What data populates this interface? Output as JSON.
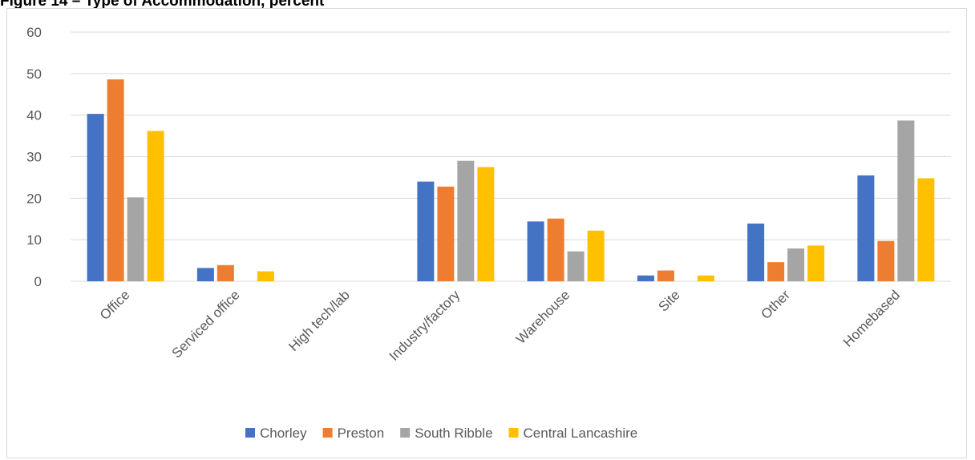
{
  "figure_title": "Figure 14 – Type of Accommodation, percent",
  "chart_data": {
    "type": "bar",
    "title": "",
    "xlabel": "",
    "ylabel": "",
    "ylim": [
      0,
      60
    ],
    "yticks": [
      0,
      10,
      20,
      30,
      40,
      50,
      60
    ],
    "grid": true,
    "legend_position": "bottom",
    "categories": [
      "Office",
      "Serviced office",
      "High tech/lab",
      "Industry/factory",
      "Warehouse",
      "Site",
      "Other",
      "Homebased"
    ],
    "series": [
      {
        "name": "Chorley",
        "color": "#4472C4",
        "values": [
          40.3,
          3.2,
          0,
          24.0,
          14.4,
          1.4,
          13.9,
          25.5
        ]
      },
      {
        "name": "Preston",
        "color": "#ED7D31",
        "values": [
          48.6,
          3.9,
          0,
          22.8,
          15.1,
          2.6,
          4.6,
          9.7
        ]
      },
      {
        "name": "South Ribble",
        "color": "#A5A5A5",
        "values": [
          20.2,
          0,
          0,
          29.0,
          7.2,
          0,
          7.9,
          38.7
        ]
      },
      {
        "name": "Central Lancashire",
        "color": "#FFC000",
        "values": [
          36.2,
          2.4,
          0,
          27.5,
          12.2,
          1.4,
          8.6,
          24.8
        ]
      }
    ]
  }
}
